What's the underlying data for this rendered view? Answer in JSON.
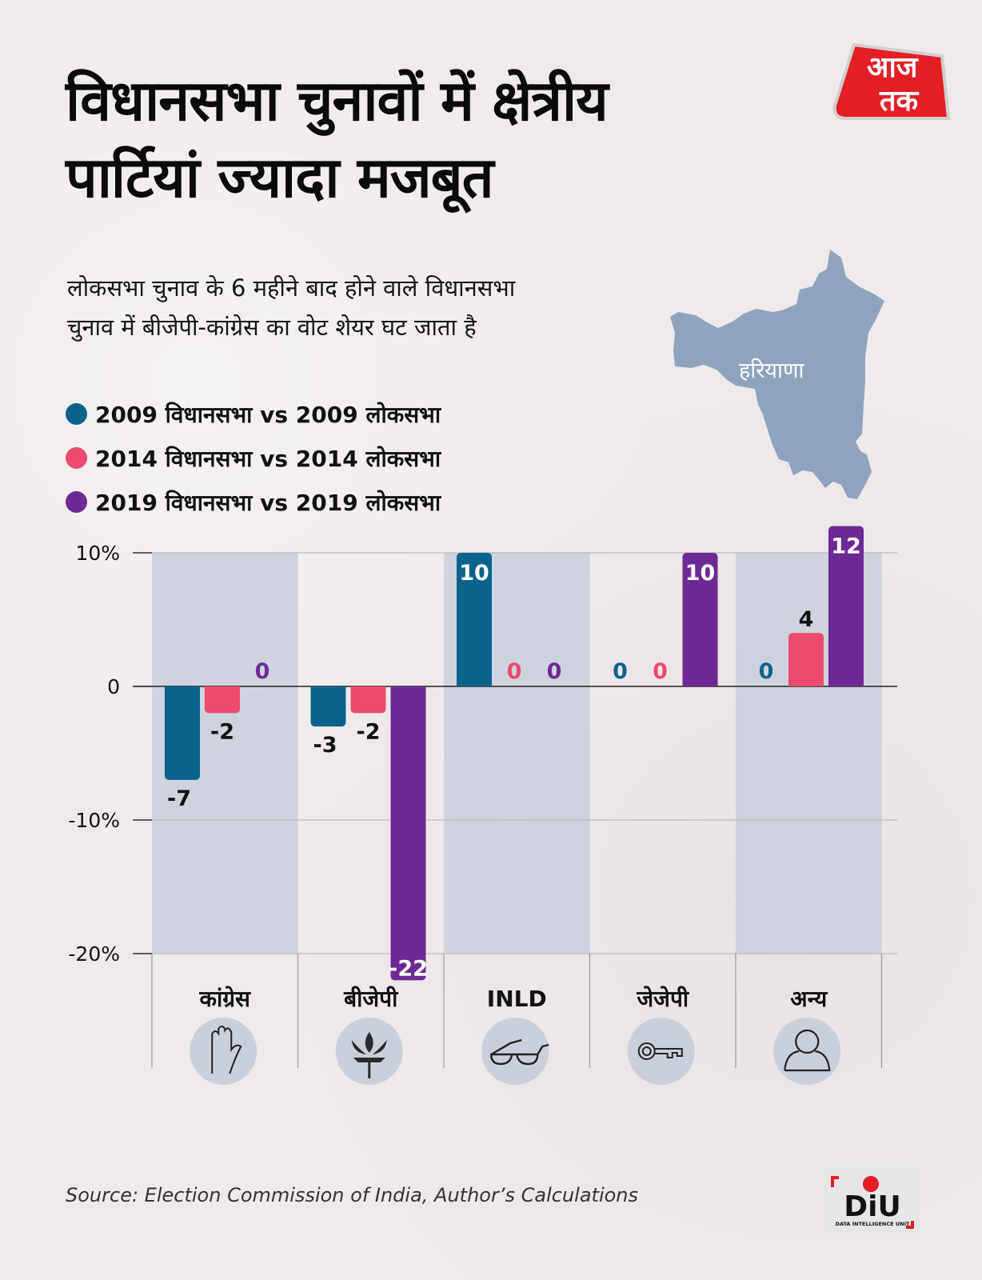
{
  "header": {
    "title_line1": "विधानसभा चुनावों में क्षेत्रीय",
    "title_line2": "पार्टियां ज्यादा मजबूत",
    "subtitle_line1": "लोकसभा चुनाव के 6 महीने बाद होने वाले विधानसभा",
    "subtitle_line2": "चुनाव में बीजेपी-कांग्रेस का वोट शेयर घट जाता है",
    "brand_logo_line1": "आज",
    "brand_logo_line2": "तक",
    "brand_logo_color": "#e31e24"
  },
  "map": {
    "label": "हरियाणा",
    "fill_color": "#8fa3bd"
  },
  "legend": [
    {
      "label": "2009 विधानसभा vs 2009 लोकसभा",
      "color": "#0a638d"
    },
    {
      "label": "2014 विधानसभा vs 2014 लोकसभा",
      "color": "#ec4a6e"
    },
    {
      "label": "2019 विधानसभा vs 2019 लोकसभा",
      "color": "#6d2a96"
    }
  ],
  "chart_data": {
    "type": "bar",
    "title": "विधानसभा चुनावों में क्षेत्रीय पार्टियां ज्यादा मजबूत",
    "xlabel": "",
    "ylabel": "",
    "ylim": [
      -20,
      10
    ],
    "yticks": [
      10,
      0,
      -10,
      -20
    ],
    "ytick_labels": [
      "10%",
      "0",
      "-10%",
      "-20%"
    ],
    "grid": true,
    "legend_position": "top-left",
    "categories": [
      "कांग्रेस",
      "बीजेपी",
      "INLD",
      "जेजेपी",
      "अन्य"
    ],
    "category_icons": [
      "hand-icon",
      "lotus-icon",
      "spectacles-icon",
      "key-icon",
      "person-icon"
    ],
    "series": [
      {
        "name": "2009 विधानसभा vs 2009 लोकसभा",
        "color": "#0a638d",
        "values": [
          -7,
          -3,
          10,
          0,
          0
        ]
      },
      {
        "name": "2014 विधानसभा vs 2014 लोकसभा",
        "color": "#ec4a6e",
        "values": [
          -2,
          -2,
          0,
          0,
          4
        ]
      },
      {
        "name": "2019 विधानसभा vs 2019 लोकसभा",
        "color": "#6d2a96",
        "values": [
          0,
          -22,
          0,
          10,
          12
        ]
      }
    ]
  },
  "footer": {
    "source": "Source: Election Commission of India, Author’s Calculations",
    "diu_logo_text": "DiU",
    "diu_logo_subtext": "DATA INTELLIGENCE UNIT"
  }
}
